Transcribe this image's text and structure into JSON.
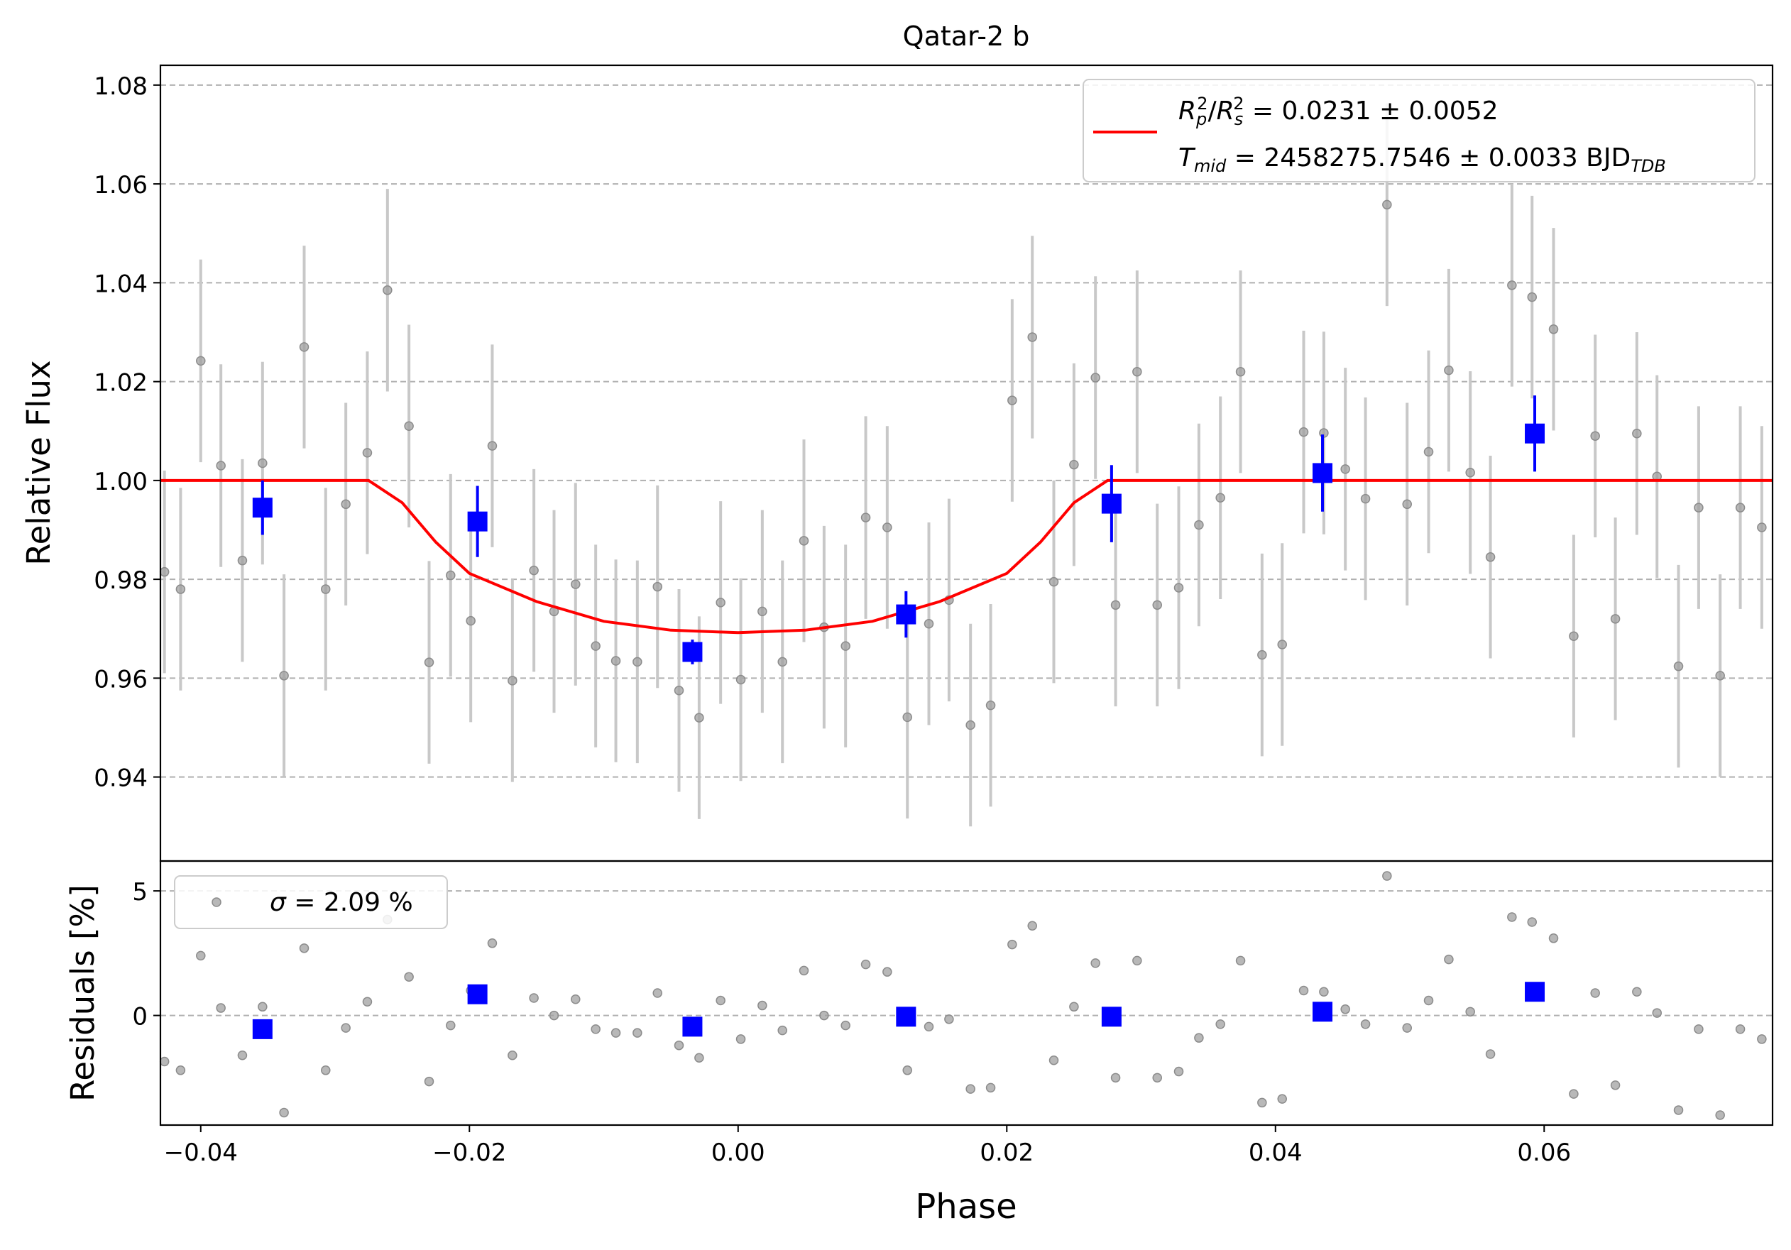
{
  "chart_data": [
    {
      "type": "scatter",
      "title": "Qatar-2 b",
      "xlabel": "",
      "ylabel": "Relative Flux",
      "xlim": [
        -0.043,
        0.077
      ],
      "ylim": [
        0.923,
        1.084
      ],
      "yticks": [
        0.94,
        0.96,
        0.98,
        1.0,
        1.02,
        1.04,
        1.06,
        1.08
      ],
      "ytick_labels": [
        "0.94",
        "0.96",
        "0.98",
        "1.00",
        "1.02",
        "1.04",
        "1.06",
        "1.08"
      ],
      "grid": "horizontal dashed",
      "legend": {
        "placement": "top-right",
        "line1": "Rₚ²/Rₛ² = 0.0231 ± 0.0052",
        "line2_main": "T",
        "line2_sub": "mid",
        "line2_rest": " = 2458275.7546 ± 0.0033 BJD",
        "line2_tail_sub": "TDB",
        "line1_main": "R",
        "line1_p": "p",
        "line1_s": "s",
        "line1_rest": " = 0.0231 ± 0.0052"
      },
      "colors": {
        "data": "#a0a0a0",
        "binned": "#0000ff",
        "model": "#ff0000",
        "error": "#c8c8c8",
        "grid": "#b0b0b0"
      },
      "series": [
        {
          "kind": "raw",
          "x": [
            -0.0427,
            -0.0415,
            -0.04,
            -0.0385,
            -0.0369,
            -0.0354,
            -0.0338,
            -0.0323,
            -0.0307,
            -0.0292,
            -0.0276,
            -0.0261,
            -0.0245,
            -0.023,
            -0.0214,
            -0.0199,
            -0.0183,
            -0.0168,
            -0.0152,
            -0.0137,
            -0.0121,
            -0.0106,
            -0.0091,
            -0.0075,
            -0.006,
            -0.0044,
            -0.0029,
            -0.0013,
            0.0002,
            0.0018,
            0.0033,
            0.0049,
            0.0064,
            0.008,
            0.0095,
            0.0111,
            0.0126,
            0.0142,
            0.0157,
            0.0173,
            0.0188,
            0.0204,
            0.0219,
            0.0235,
            0.025,
            0.0266,
            0.0281,
            0.0297,
            0.0312,
            0.0328,
            0.0343,
            0.0359,
            0.0374,
            0.039,
            0.0405,
            0.0421,
            0.0436,
            0.0452,
            0.0467,
            0.0483,
            0.0498,
            0.0514,
            0.0529,
            0.0545,
            0.056,
            0.0576,
            0.0591,
            0.0607,
            0.0622,
            0.0638,
            0.0653,
            0.0669,
            0.0684,
            0.07,
            0.0715,
            0.0731,
            0.0746,
            0.0762
          ],
          "y": [
            0.9815,
            0.978,
            1.0242,
            1.003,
            0.9838,
            1.0035,
            0.9605,
            1.027,
            0.978,
            0.9952,
            1.0056,
            1.0385,
            1.011,
            0.9632,
            0.9808,
            0.9716,
            1.007,
            0.9595,
            0.9818,
            0.9735,
            0.979,
            0.9665,
            0.9635,
            0.9633,
            0.9785,
            0.9575,
            0.952,
            0.9753,
            0.9597,
            0.9735,
            0.9633,
            0.9878,
            0.9703,
            0.9665,
            0.9925,
            0.9905,
            0.9521,
            0.971,
            0.9758,
            0.9505,
            0.9545,
            1.0162,
            1.029,
            0.9795,
            1.0032,
            1.0208,
            0.9748,
            1.022,
            0.9748,
            0.9783,
            0.991,
            0.9965,
            1.022,
            0.9647,
            0.9668,
            1.0098,
            1.0096,
            1.0023,
            0.9963,
            1.0558,
            0.9952,
            1.0058,
            1.0223,
            1.0016,
            0.9845,
            1.0395,
            1.0371,
            1.0306,
            0.9685,
            1.009,
            0.972,
            1.0095,
            1.0008,
            0.9624,
            0.9945,
            0.9605,
            0.9945,
            0.9905
          ],
          "yerr": 0.0205
        },
        {
          "kind": "binned",
          "x": [
            -0.0354,
            -0.0194,
            -0.0034,
            0.0125,
            0.0278,
            0.0435,
            0.0593
          ],
          "y": [
            0.9945,
            0.9917,
            0.9653,
            0.9729,
            0.9953,
            1.0015,
            1.0095
          ],
          "yerr": [
            0.0055,
            0.0072,
            0.0025,
            0.0047,
            0.0078,
            0.0078,
            0.0077
          ]
        },
        {
          "kind": "model",
          "name": "",
          "x": [
            -0.043,
            -0.0275,
            -0.025,
            -0.0225,
            -0.02,
            -0.015,
            -0.01,
            -0.005,
            0.0,
            0.005,
            0.01,
            0.015,
            0.02,
            0.0225,
            0.025,
            0.0275,
            0.077
          ],
          "y": [
            1.0,
            1.0,
            0.9955,
            0.9875,
            0.9812,
            0.9755,
            0.9715,
            0.9697,
            0.9692,
            0.9697,
            0.9715,
            0.9755,
            0.9812,
            0.9875,
            0.9955,
            1.0,
            1.0
          ]
        }
      ]
    },
    {
      "type": "scatter",
      "xlabel": "Phase",
      "ylabel": "Residuals [%]",
      "xlim": [
        -0.043,
        0.077
      ],
      "ylim": [
        -4.4,
        6.2
      ],
      "yticks": [
        0,
        5
      ],
      "ytick_labels": [
        "0",
        "5"
      ],
      "xticks": [
        -0.04,
        -0.02,
        0.0,
        0.02,
        0.04,
        0.06
      ],
      "xtick_labels": [
        "−0.04",
        "−0.02",
        "0.00",
        "0.02",
        "0.04",
        "0.06"
      ],
      "grid": "horizontal dashed",
      "legend": {
        "placement": "top-left",
        "sigma_symbol": "σ",
        "label": " = 2.09 %"
      },
      "series": [
        {
          "kind": "raw",
          "x": [
            -0.0427,
            -0.0415,
            -0.04,
            -0.0385,
            -0.0369,
            -0.0354,
            -0.0338,
            -0.0323,
            -0.0307,
            -0.0292,
            -0.0276,
            -0.0261,
            -0.0245,
            -0.023,
            -0.0214,
            -0.0199,
            -0.0183,
            -0.0168,
            -0.0152,
            -0.0137,
            -0.0121,
            -0.0106,
            -0.0091,
            -0.0075,
            -0.006,
            -0.0044,
            -0.0029,
            -0.0013,
            0.0002,
            0.0018,
            0.0033,
            0.0049,
            0.0064,
            0.008,
            0.0095,
            0.0111,
            0.0126,
            0.0142,
            0.0157,
            0.0173,
            0.0188,
            0.0204,
            0.0219,
            0.0235,
            0.025,
            0.0266,
            0.0281,
            0.0297,
            0.0312,
            0.0328,
            0.0343,
            0.0359,
            0.0374,
            0.039,
            0.0405,
            0.0421,
            0.0436,
            0.0452,
            0.0467,
            0.0483,
            0.0498,
            0.0514,
            0.0529,
            0.0545,
            0.056,
            0.0576,
            0.0591,
            0.0607,
            0.0622,
            0.0638,
            0.0653,
            0.0669,
            0.0684,
            0.07,
            0.0715,
            0.0731,
            0.0746,
            0.0762
          ],
          "y": [
            -1.85,
            -2.2,
            2.4,
            0.3,
            -1.6,
            0.35,
            -3.9,
            2.7,
            -2.2,
            -0.5,
            0.55,
            3.85,
            1.55,
            -2.65,
            -0.4,
            1.0,
            2.9,
            -1.6,
            0.7,
            0.0,
            0.65,
            -0.55,
            -0.7,
            -0.7,
            0.9,
            -1.2,
            -1.7,
            0.6,
            -0.95,
            0.4,
            -0.6,
            1.8,
            0.0,
            -0.4,
            2.05,
            1.75,
            -2.2,
            -0.45,
            -0.15,
            -2.95,
            -2.9,
            2.85,
            3.6,
            -1.8,
            0.35,
            2.1,
            -2.5,
            2.2,
            -2.5,
            -2.25,
            -0.9,
            -0.35,
            2.2,
            -3.5,
            -3.35,
            1.0,
            0.95,
            0.25,
            -0.35,
            5.6,
            -0.5,
            0.6,
            2.25,
            0.15,
            -1.55,
            3.95,
            3.75,
            3.1,
            -3.15,
            0.9,
            -2.8,
            0.95,
            0.1,
            -3.8,
            -0.55,
            -4.0,
            -0.55,
            -0.95
          ]
        },
        {
          "kind": "binned",
          "x": [
            -0.0354,
            -0.0194,
            -0.0034,
            0.0125,
            0.0278,
            0.0435,
            0.0593
          ],
          "y": [
            -0.55,
            0.85,
            -0.45,
            -0.05,
            -0.05,
            0.15,
            0.95
          ]
        }
      ]
    }
  ]
}
